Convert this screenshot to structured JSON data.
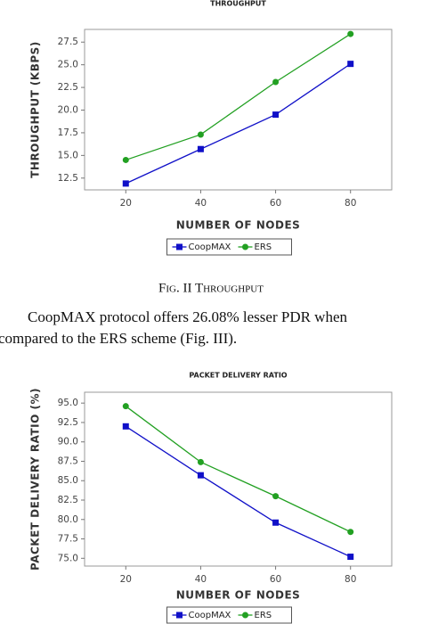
{
  "chart_data": [
    {
      "type": "line",
      "title": "THROUGHPUT",
      "xlabel": "NUMBER OF NODES",
      "ylabel": "THROUGHPUT (KBPS)",
      "x": [
        20,
        40,
        60,
        80
      ],
      "xlim": [
        9,
        91
      ],
      "xticks": [
        20,
        40,
        60,
        80
      ],
      "ylim": [
        11.2,
        28.9
      ],
      "yticks": [
        12.5,
        {
          "value": 15,
          "label": "15.0"
        },
        17.5,
        {
          "value": 20,
          "label": "20.0"
        },
        22.5,
        {
          "value": 25,
          "label": "25.0"
        },
        27.5
      ],
      "series": [
        {
          "name": "CoopMAX",
          "color": "#1010c8",
          "marker": "square",
          "values": [
            11.9,
            15.7,
            19.5,
            25.1
          ]
        },
        {
          "name": "ERS",
          "color": "#22a022",
          "marker": "circle",
          "values": [
            14.5,
            17.3,
            23.1,
            28.4
          ]
        }
      ]
    },
    {
      "type": "line",
      "title": "PACKET DELIVERY RATIO",
      "xlabel": "NUMBER OF NODES",
      "ylabel": "PACKET DELIVERY RATIO (%)",
      "x": [
        20,
        40,
        60,
        80
      ],
      "xlim": [
        9,
        91
      ],
      "xticks": [
        20,
        40,
        60,
        80
      ],
      "ylim": [
        74.0,
        96.4
      ],
      "yticks": [
        {
          "value": 75,
          "label": "75.0"
        },
        77.5,
        {
          "value": 80,
          "label": "80.0"
        },
        82.5,
        {
          "value": 85,
          "label": "85.0"
        },
        87.5,
        {
          "value": 90,
          "label": "90.0"
        },
        92.5,
        {
          "value": 95,
          "label": "95.0"
        }
      ],
      "series": [
        {
          "name": "CoopMAX",
          "color": "#1010c8",
          "marker": "square",
          "values": [
            92.0,
            85.7,
            79.6,
            75.2
          ]
        },
        {
          "name": "ERS",
          "color": "#22a022",
          "marker": "circle",
          "values": [
            94.6,
            87.4,
            83.0,
            78.4
          ]
        }
      ]
    }
  ],
  "caption": "Fig. II Throughput",
  "paragraph": [
    "CoopMAX protocol offers 26.08% lesser PDR when",
    "compared to the ERS scheme (Fig. III)."
  ]
}
